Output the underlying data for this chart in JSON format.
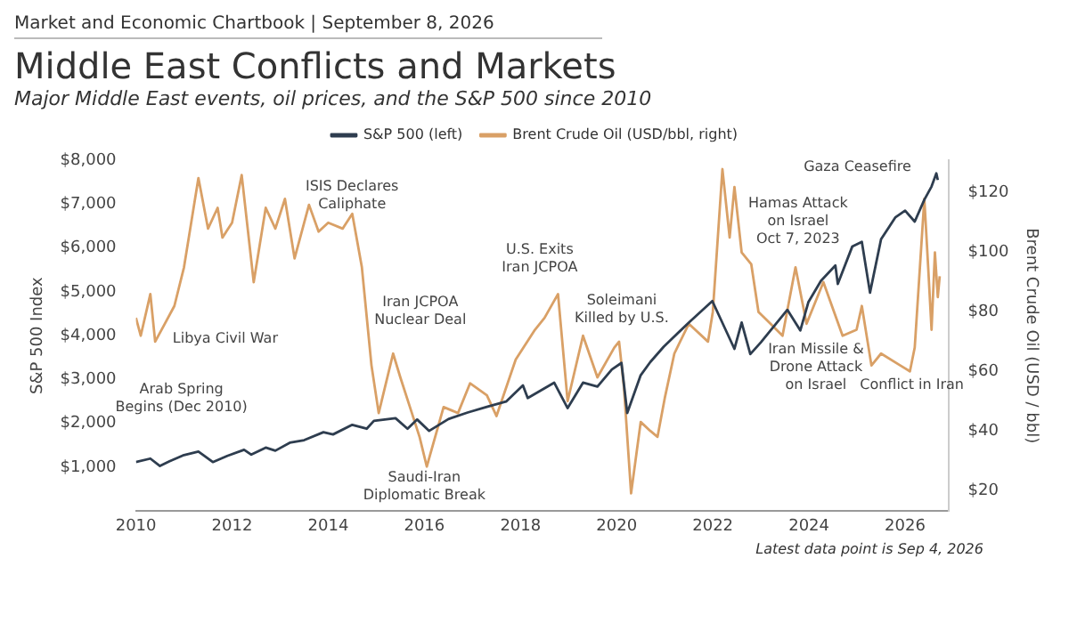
{
  "chart_data": {
    "type": "line",
    "title": "Middle East Conflicts and Markets",
    "subtitle": "Major Middle East events, oil prices, and the S&P 500 since 2010",
    "ylabel": "S&P 500 Index",
    "y2label": "Brent Crude Oil (USD / bbl)",
    "xlim": [
      2010,
      2026.9
    ],
    "xticks": [
      2010,
      2012,
      2014,
      2016,
      2018,
      2020,
      2022,
      2024,
      2026
    ],
    "ylim": [
      0,
      8000
    ],
    "yticks": [
      {
        "value": 1000,
        "label": "$1,000"
      },
      {
        "value": 2000,
        "label": "$2,000"
      },
      {
        "value": 3000,
        "label": "$3,000"
      },
      {
        "value": 4000,
        "label": "$4,000"
      },
      {
        "value": 5000,
        "label": "$5,000"
      },
      {
        "value": 6000,
        "label": "$6,000"
      },
      {
        "value": 7000,
        "label": "$7,000"
      },
      {
        "value": 8000,
        "label": "$8,000"
      }
    ],
    "y2lim": [
      13,
      131
    ],
    "y2ticks": [
      {
        "value": 20,
        "label": "$20"
      },
      {
        "value": 40,
        "label": "$40"
      },
      {
        "value": 60,
        "label": "$60"
      },
      {
        "value": 80,
        "label": "$80"
      },
      {
        "value": 100,
        "label": "$100"
      },
      {
        "value": 120,
        "label": "$120"
      }
    ],
    "grid": false,
    "legend": "top",
    "marker": "none",
    "line_style": "solid",
    "series": [
      {
        "name": "S&P 500 (left)",
        "color": "#2e3d4f",
        "x": [
          2010.0,
          2010.3,
          2010.5,
          2010.7,
          2011.0,
          2011.3,
          2011.6,
          2011.9,
          2012.25,
          2012.4,
          2012.7,
          2012.9,
          2013.2,
          2013.5,
          2013.9,
          2014.1,
          2014.5,
          2014.8,
          2014.95,
          2015.4,
          2015.65,
          2015.85,
          2016.1,
          2016.5,
          2016.9,
          2017.3,
          2017.7,
          2018.05,
          2018.15,
          2018.7,
          2018.98,
          2019.3,
          2019.6,
          2019.9,
          2020.1,
          2020.22,
          2020.5,
          2020.7,
          2020.98,
          2021.5,
          2021.99,
          2022.45,
          2022.6,
          2022.78,
          2023.0,
          2023.55,
          2023.82,
          2023.99,
          2024.25,
          2024.55,
          2024.6,
          2024.9,
          2025.1,
          2025.27,
          2025.5,
          2025.8,
          2026.0,
          2026.2,
          2026.4,
          2026.55,
          2026.65,
          2026.68
        ],
        "values": [
          1120,
          1200,
          1030,
          1140,
          1280,
          1360,
          1120,
          1260,
          1400,
          1290,
          1450,
          1380,
          1560,
          1620,
          1800,
          1750,
          1970,
          1880,
          2060,
          2120,
          1880,
          2090,
          1830,
          2100,
          2250,
          2380,
          2500,
          2870,
          2580,
          2930,
          2350,
          2930,
          2840,
          3230,
          3380,
          2240,
          3100,
          3400,
          3750,
          4300,
          4790,
          3700,
          4300,
          3580,
          3850,
          4590,
          4120,
          4770,
          5250,
          5600,
          5180,
          6030,
          6140,
          4980,
          6200,
          6700,
          6850,
          6600,
          7100,
          7400,
          7700,
          7550
        ]
      },
      {
        "name": "Brent Crude Oil (USD/bbl, right)",
        "color": "#d9a066",
        "axis": "y2",
        "x": [
          2010.0,
          2010.1,
          2010.3,
          2010.4,
          2010.6,
          2010.8,
          2011.0,
          2011.3,
          2011.5,
          2011.7,
          2011.8,
          2012.0,
          2012.2,
          2012.45,
          2012.7,
          2012.9,
          2013.1,
          2013.3,
          2013.6,
          2013.8,
          2014.0,
          2014.3,
          2014.5,
          2014.7,
          2014.9,
          2015.05,
          2015.35,
          2015.5,
          2015.7,
          2015.9,
          2016.05,
          2016.4,
          2016.7,
          2016.95,
          2017.3,
          2017.5,
          2017.9,
          2018.3,
          2018.5,
          2018.78,
          2018.98,
          2019.3,
          2019.6,
          2019.95,
          2020.05,
          2020.15,
          2020.3,
          2020.5,
          2020.7,
          2020.85,
          2021.0,
          2021.2,
          2021.5,
          2021.9,
          2022.0,
          2022.2,
          2022.35,
          2022.45,
          2022.6,
          2022.8,
          2022.95,
          2023.2,
          2023.45,
          2023.72,
          2023.95,
          2024.3,
          2024.7,
          2024.99,
          2025.1,
          2025.3,
          2025.5,
          2025.9,
          2026.1,
          2026.2,
          2026.4,
          2026.48,
          2026.55,
          2026.62,
          2026.68,
          2026.72
        ],
        "values": [
          78,
          72,
          86,
          70,
          76,
          82,
          95,
          125,
          108,
          115,
          105,
          110,
          126,
          90,
          115,
          108,
          118,
          98,
          116,
          107,
          110,
          108,
          113,
          95,
          62,
          46,
          66,
          58,
          48,
          38,
          28,
          48,
          46,
          56,
          52,
          45,
          64,
          74,
          78,
          86,
          50,
          72,
          58,
          68,
          70,
          55,
          19,
          43,
          40,
          38,
          51,
          66,
          76,
          70,
          80,
          128,
          105,
          122,
          100,
          96,
          80,
          76,
          72,
          95,
          76,
          90,
          72,
          74,
          82,
          62,
          66,
          62,
          60,
          68,
          118,
          95,
          74,
          100,
          85,
          92
        ]
      }
    ],
    "annotations": [
      "Market and Economic Chartbook | September 8, 2026",
      "Libya Civil War",
      "Arab Spring\nBegins (Dec 2010)",
      "ISIS Declares\nCaliphate",
      "Iran JCPOA\nNuclear Deal",
      "Saudi-Iran\nDiplomatic Break",
      "U.S. Exits\nIran JCPOA",
      "Soleimani\nKilled by U.S.",
      "Gaza Ceasefire",
      "Hamas Attack\non Israel\nOct 7, 2023",
      "Iran Missile &\nDrone Attack\non Israel",
      "Conflict in Iran",
      "Latest data point is Sep 4, 2026"
    ]
  }
}
